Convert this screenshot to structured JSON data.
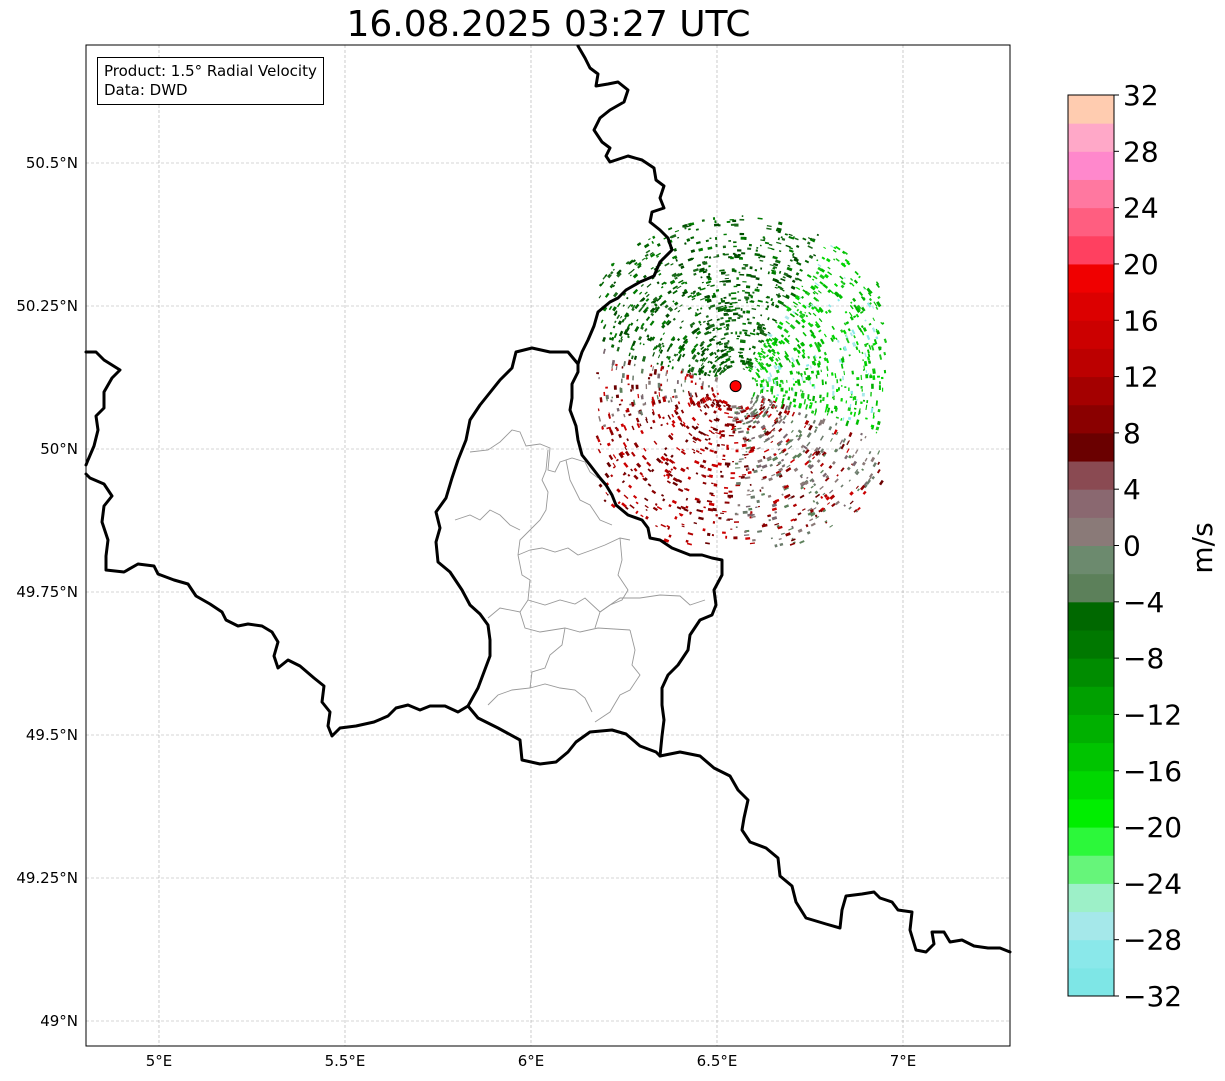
{
  "title": "16.08.2025 03:27 UTC",
  "info_box": {
    "product": "Product: 1.5° Radial Velocity",
    "source": "Data: DWD"
  },
  "map": {
    "lon_range": [
      4.8,
      7.3
    ],
    "lat_range": [
      48.95,
      50.7
    ],
    "x_ticks": [
      {
        "value": 5.0,
        "label": "5°E"
      },
      {
        "value": 5.5,
        "label": "5.5°E"
      },
      {
        "value": 6.0,
        "label": "6°E"
      },
      {
        "value": 6.5,
        "label": "6.5°E"
      },
      {
        "value": 7.0,
        "label": "7°E"
      }
    ],
    "y_ticks": [
      {
        "value": 50.5,
        "label": "50.5°N"
      },
      {
        "value": 50.25,
        "label": "50.25°N"
      },
      {
        "value": 50.0,
        "label": "50°N"
      },
      {
        "value": 49.75,
        "label": "49.75°N"
      },
      {
        "value": 49.5,
        "label": "49.5°N"
      },
      {
        "value": 49.25,
        "label": "49.25°N"
      },
      {
        "value": 49.0,
        "label": "49°N"
      }
    ],
    "grid": true,
    "radar_site": {
      "lon": 6.55,
      "lat": 50.11,
      "color": "#ff0000"
    }
  },
  "colorbar": {
    "unit": "m/s",
    "min": -32,
    "max": 32,
    "tick_labels": [
      "32",
      "28",
      "24",
      "20",
      "16",
      "12",
      "8",
      "4",
      "0",
      "−4",
      "−8",
      "−12",
      "−16",
      "−20",
      "−24",
      "−28",
      "−32"
    ],
    "colors_bottom_to_top": [
      "#7ee6e6",
      "#8ae8ea",
      "#a5e8ea",
      "#9df0c8",
      "#66f57a",
      "#2cf83a",
      "#00ee00",
      "#00d800",
      "#00c400",
      "#00b000",
      "#00a000",
      "#008c00",
      "#007800",
      "#006800",
      "#5c805a",
      "#6c8a6e",
      "#8a7a78",
      "#8a6870",
      "#8a4a52",
      "#6a0000",
      "#8a0000",
      "#a40000",
      "#bc0000",
      "#cc0000",
      "#dc0000",
      "#f00000",
      "#ff4060",
      "#ff5e80",
      "#ff78a0",
      "#ff88cc",
      "#ffa8c8",
      "#ffccb0"
    ]
  }
}
